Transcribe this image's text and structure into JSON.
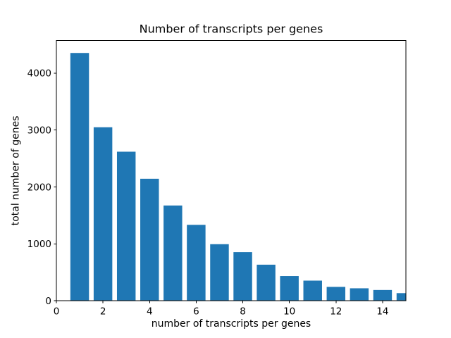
{
  "figure": {
    "background": "#ffffff"
  },
  "chart_data": {
    "type": "bar",
    "title": "Number of transcripts per genes",
    "xlabel": "number of transcripts per genes",
    "ylabel": "total number of genes",
    "x": [
      1,
      2,
      3,
      4,
      5,
      6,
      7,
      8,
      9,
      10,
      11,
      12,
      13,
      14,
      15
    ],
    "values": [
      4355,
      3050,
      2620,
      2145,
      1675,
      1335,
      995,
      855,
      635,
      435,
      355,
      245,
      220,
      190,
      135
    ],
    "bar_width": 0.8,
    "bar_color": "#1f77b4",
    "axis_color": "#000000",
    "xlim": [
      0,
      15
    ],
    "ylim": [
      0,
      4573
    ],
    "xticks": [
      0,
      2,
      4,
      6,
      8,
      10,
      12,
      14
    ],
    "yticks": [
      0,
      1000,
      2000,
      3000,
      4000
    ],
    "grid": false,
    "legend": null
  }
}
